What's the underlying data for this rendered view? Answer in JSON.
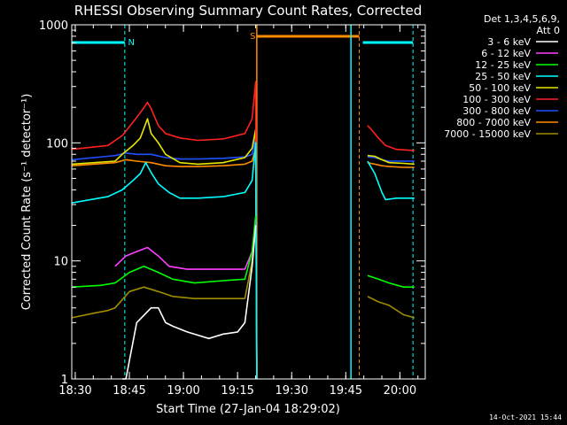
{
  "chart_data": {
    "type": "line",
    "title": "RHESSI Observing Summary Count Rates, Corrected",
    "xlabel": "Start Time (27-Jan-04 18:29:02)",
    "ylabel": "Corrected Count Rate (s⁻¹ detector⁻¹)",
    "yscale": "log",
    "xlim_minutes": [
      0,
      98
    ],
    "ylim": [
      1,
      1000
    ],
    "x_ticks": [
      "18:30",
      "18:45",
      "19:00",
      "19:15",
      "19:30",
      "19:45",
      "20:00"
    ],
    "y_ticks": [
      "1",
      "10",
      "100",
      "1000"
    ],
    "legend_header": [
      "Det 1,3,4,5,6,9,",
      "Att 0"
    ],
    "legend_position": "right",
    "timestamp": "14-Oct-2021 15:44",
    "annotations": [
      {
        "label": "N",
        "color": "#00ffff"
      },
      {
        "label": "S",
        "color": "#ff8c00"
      }
    ],
    "background_color": "#000000",
    "series": [
      {
        "name": "3 - 6 keV",
        "color": "#ffffff"
      },
      {
        "name": "6 - 12 keV",
        "color": "#ff40ff"
      },
      {
        "name": "12 - 25 keV",
        "color": "#00ff00"
      },
      {
        "name": "25 - 50 keV",
        "color": "#00ffff"
      },
      {
        "name": "50 - 100 keV",
        "color": "#e6e600"
      },
      {
        "name": "100 - 300 keV",
        "color": "#ff2020"
      },
      {
        "name": "300 - 800 keV",
        "color": "#2050ff"
      },
      {
        "name": "800 - 7000 keV",
        "color": "#ff8c00"
      },
      {
        "name": "7000 - 15000 keV",
        "color": "#a08c00"
      }
    ],
    "curves": [
      {
        "series": 6,
        "points": [
          [
            0,
            72
          ],
          [
            12,
            78
          ],
          [
            15,
            82
          ],
          [
            18,
            80
          ],
          [
            22,
            80
          ],
          [
            26,
            75
          ],
          [
            30,
            73
          ],
          [
            35,
            73
          ],
          [
            42,
            74
          ],
          [
            48,
            76
          ],
          [
            50,
            80
          ],
          [
            51,
            110
          ],
          [
            51.3,
            0
          ]
        ]
      },
      {
        "series": 7,
        "points": [
          [
            0,
            64
          ],
          [
            12,
            68
          ],
          [
            15,
            72
          ],
          [
            18,
            70
          ],
          [
            22,
            68
          ],
          [
            26,
            64
          ],
          [
            30,
            63
          ],
          [
            35,
            63
          ],
          [
            42,
            64
          ],
          [
            48,
            66
          ],
          [
            50,
            70
          ],
          [
            51,
            90
          ],
          [
            51.3,
            0
          ]
        ]
      },
      {
        "series": 4,
        "points": [
          [
            0,
            66
          ],
          [
            12,
            70
          ],
          [
            14,
            80
          ],
          [
            17,
            95
          ],
          [
            19,
            110
          ],
          [
            21,
            160
          ],
          [
            22,
            120
          ],
          [
            24,
            100
          ],
          [
            26,
            80
          ],
          [
            30,
            68
          ],
          [
            35,
            66
          ],
          [
            42,
            68
          ],
          [
            48,
            75
          ],
          [
            50,
            90
          ],
          [
            51,
            130
          ],
          [
            51.3,
            0
          ]
        ]
      },
      {
        "series": 5,
        "points": [
          [
            0,
            88
          ],
          [
            10,
            95
          ],
          [
            14,
            115
          ],
          [
            17,
            150
          ],
          [
            19,
            180
          ],
          [
            21,
            220
          ],
          [
            22,
            195
          ],
          [
            24,
            140
          ],
          [
            26,
            120
          ],
          [
            30,
            110
          ],
          [
            35,
            105
          ],
          [
            42,
            108
          ],
          [
            48,
            120
          ],
          [
            50,
            160
          ],
          [
            51,
            330
          ],
          [
            51.3,
            0
          ]
        ]
      },
      {
        "series": 3,
        "points": [
          [
            0,
            31
          ],
          [
            10,
            35
          ],
          [
            14,
            40
          ],
          [
            17,
            48
          ],
          [
            19,
            55
          ],
          [
            20.5,
            68
          ],
          [
            22,
            56
          ],
          [
            24,
            45
          ],
          [
            27,
            38
          ],
          [
            30,
            34
          ],
          [
            35,
            34
          ],
          [
            42,
            35
          ],
          [
            48,
            38
          ],
          [
            50,
            48
          ],
          [
            51,
            100
          ],
          [
            51.3,
            0
          ]
        ]
      },
      {
        "series": 1,
        "points": [
          [
            12,
            9
          ],
          [
            15,
            11
          ],
          [
            18,
            12
          ],
          [
            21,
            13
          ],
          [
            24,
            11
          ],
          [
            27,
            9
          ],
          [
            32,
            8.5
          ],
          [
            38,
            8.5
          ],
          [
            44,
            8.5
          ],
          [
            48,
            8.5
          ],
          [
            50,
            12
          ],
          [
            51,
            22
          ]
        ]
      },
      {
        "series": 2,
        "points": [
          [
            0,
            6
          ],
          [
            8,
            6.2
          ],
          [
            12,
            6.5
          ],
          [
            16,
            8
          ],
          [
            20,
            9
          ],
          [
            24,
            8
          ],
          [
            28,
            7
          ],
          [
            34,
            6.5
          ],
          [
            42,
            6.8
          ],
          [
            48,
            7
          ],
          [
            50,
            12
          ],
          [
            51,
            24
          ]
        ]
      },
      {
        "series": 8,
        "points": [
          [
            0,
            3.3
          ],
          [
            6,
            3.6
          ],
          [
            10,
            3.8
          ],
          [
            12,
            4
          ],
          [
            16,
            5.5
          ],
          [
            20,
            6
          ],
          [
            24,
            5.5
          ],
          [
            28,
            5
          ],
          [
            34,
            4.8
          ],
          [
            42,
            4.8
          ],
          [
            48,
            4.8
          ],
          [
            50,
            10
          ],
          [
            51,
            20
          ]
        ]
      },
      {
        "series": 0,
        "points": [
          [
            14,
            1
          ],
          [
            15,
            1
          ],
          [
            18,
            3
          ],
          [
            22,
            4
          ],
          [
            24,
            4
          ],
          [
            26,
            3
          ],
          [
            28,
            2.8
          ],
          [
            32,
            2.5
          ],
          [
            38,
            2.2
          ],
          [
            42,
            2.4
          ],
          [
            46,
            2.5
          ],
          [
            48,
            3
          ],
          [
            50,
            9
          ],
          [
            51,
            20
          ]
        ]
      },
      {
        "series": 6,
        "points": [
          [
            82,
            76
          ],
          [
            84,
            75
          ],
          [
            86,
            72
          ],
          [
            88,
            70
          ],
          [
            92,
            70
          ],
          [
            95,
            70
          ]
        ]
      },
      {
        "series": 7,
        "points": [
          [
            82,
            68
          ],
          [
            84,
            66
          ],
          [
            86,
            64
          ],
          [
            88,
            63
          ],
          [
            92,
            62
          ],
          [
            95,
            62
          ]
        ]
      },
      {
        "series": 4,
        "points": [
          [
            82,
            78
          ],
          [
            84,
            77
          ],
          [
            86,
            72
          ],
          [
            88,
            68
          ],
          [
            92,
            67
          ],
          [
            95,
            66
          ]
        ]
      },
      {
        "series": 5,
        "points": [
          [
            82,
            140
          ],
          [
            83,
            130
          ],
          [
            85,
            110
          ],
          [
            87,
            95
          ],
          [
            90,
            88
          ],
          [
            95,
            86
          ]
        ]
      },
      {
        "series": 3,
        "points": [
          [
            82,
            70
          ],
          [
            84,
            55
          ],
          [
            86,
            38
          ],
          [
            87,
            33
          ],
          [
            90,
            34
          ],
          [
            95,
            34
          ]
        ]
      },
      {
        "series": 2,
        "points": [
          [
            82,
            7.5
          ],
          [
            85,
            7
          ],
          [
            88,
            6.5
          ],
          [
            92,
            6
          ],
          [
            95,
            6
          ]
        ]
      },
      {
        "series": 8,
        "points": [
          [
            82,
            5
          ],
          [
            85,
            4.5
          ],
          [
            88,
            4.2
          ],
          [
            92,
            3.5
          ],
          [
            95,
            3.3
          ]
        ]
      }
    ]
  }
}
